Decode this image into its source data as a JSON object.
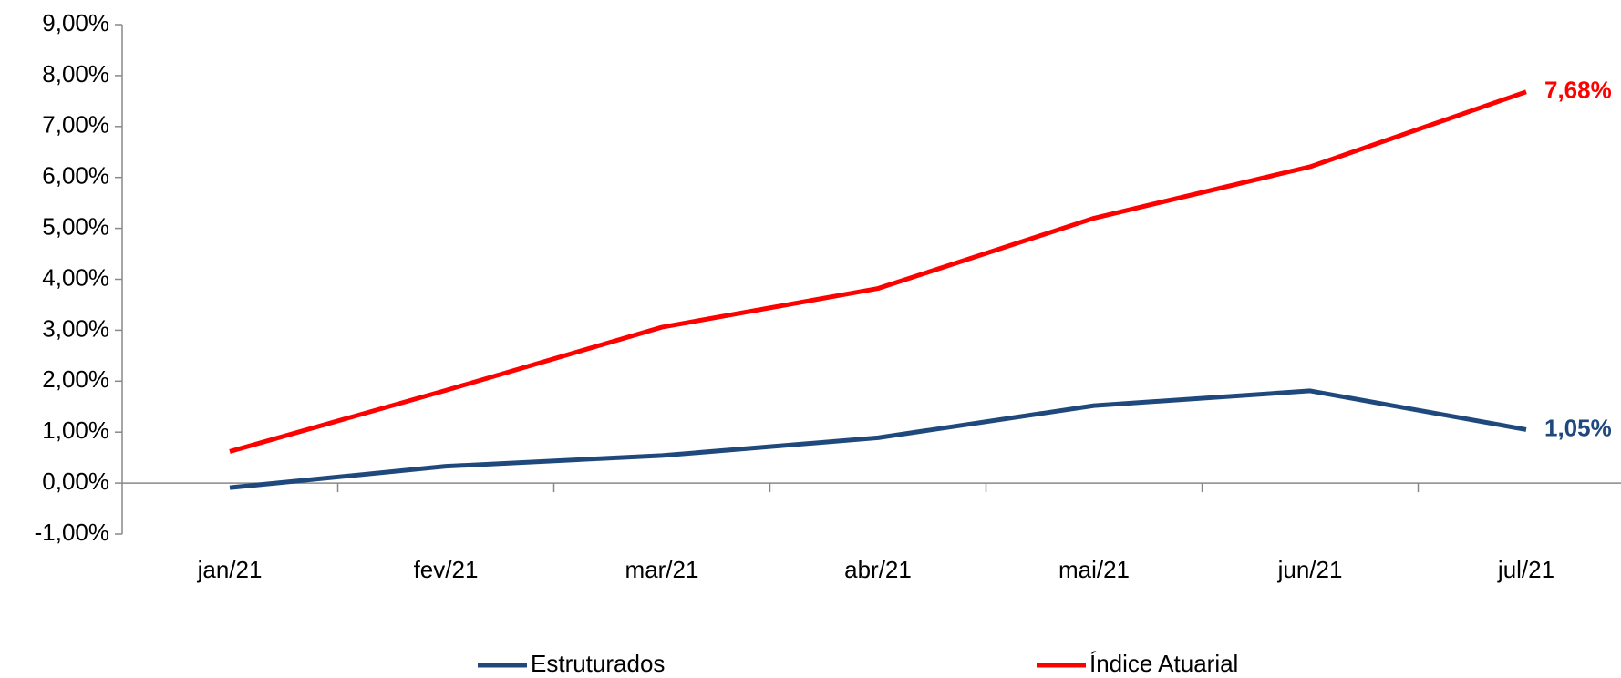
{
  "chart_data": {
    "type": "line",
    "categories": [
      "jan/21",
      "fev/21",
      "mar/21",
      "abr/21",
      "mai/21",
      "jun/21",
      "jul/21"
    ],
    "series": [
      {
        "name": "Estruturados",
        "color": "#1f497d",
        "values": [
          -0.09,
          0.33,
          0.54,
          0.89,
          1.52,
          1.81,
          1.05
        ],
        "value_labels": [
          null,
          null,
          null,
          null,
          null,
          null,
          "1,05%"
        ]
      },
      {
        "name": "Índice Atuarial",
        "color": "#ff0000",
        "values": [
          0.62,
          1.82,
          3.06,
          3.82,
          5.2,
          6.21,
          7.68
        ],
        "value_labels": [
          null,
          null,
          null,
          null,
          null,
          null,
          "7,68%"
        ]
      }
    ],
    "ylim": [
      -1,
      9
    ],
    "yticks": [
      {
        "value": -1,
        "label": "-1,00%"
      },
      {
        "value": 0,
        "label": "0,00%"
      },
      {
        "value": 1,
        "label": "1,00%"
      },
      {
        "value": 2,
        "label": "2,00%"
      },
      {
        "value": 3,
        "label": "3,00%"
      },
      {
        "value": 4,
        "label": "4,00%"
      },
      {
        "value": 5,
        "label": "5,00%"
      },
      {
        "value": 6,
        "label": "6,00%"
      },
      {
        "value": 7,
        "label": "7,00%"
      },
      {
        "value": 8,
        "label": "8,00%"
      },
      {
        "value": 9,
        "label": "9,00%"
      }
    ],
    "grid": false,
    "legend": "bottom"
  }
}
